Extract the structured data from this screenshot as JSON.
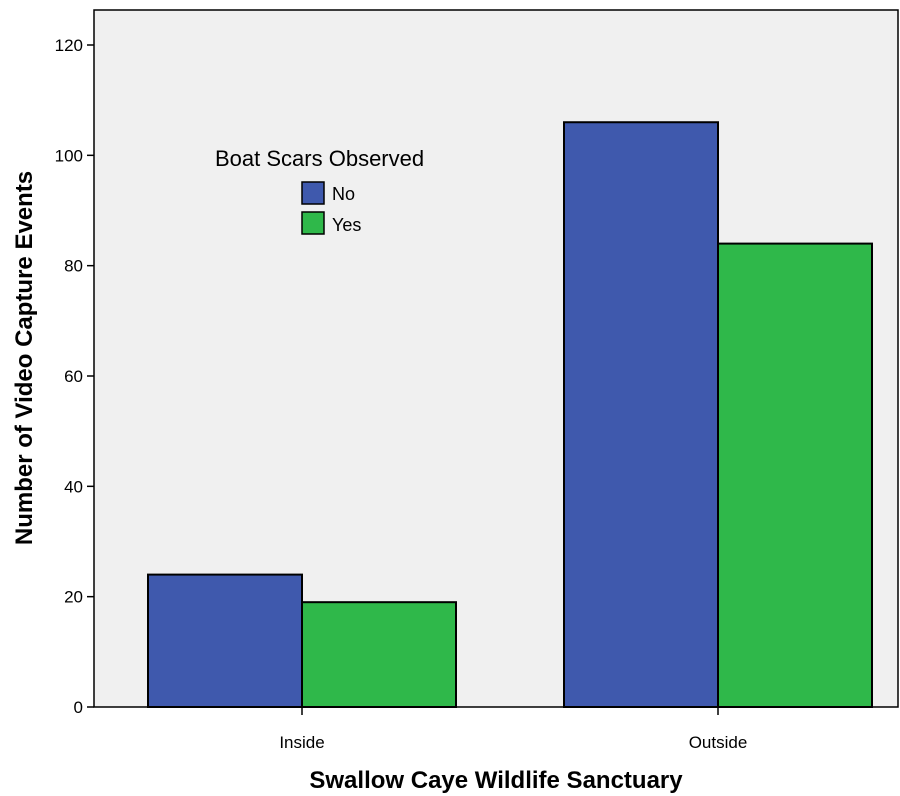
{
  "chart_data": {
    "type": "bar",
    "title": "",
    "xlabel": "Swallow Caye Wildlife Sanctuary",
    "ylabel": "Number of Video Capture Events",
    "categories": [
      "Inside",
      "Outside"
    ],
    "series": [
      {
        "name": "No",
        "values": [
          24,
          106
        ],
        "color": "#3f59ad"
      },
      {
        "name": "Yes",
        "values": [
          19,
          84
        ],
        "color": "#2fb84a"
      }
    ],
    "ylim": [
      0,
      120
    ],
    "yticks": [
      0,
      20,
      40,
      60,
      80,
      100,
      120
    ],
    "grid": false,
    "plot_background": "#f0f0f0",
    "legend": {
      "title": "Boat Scars Observed",
      "placement": "upper-left"
    }
  }
}
